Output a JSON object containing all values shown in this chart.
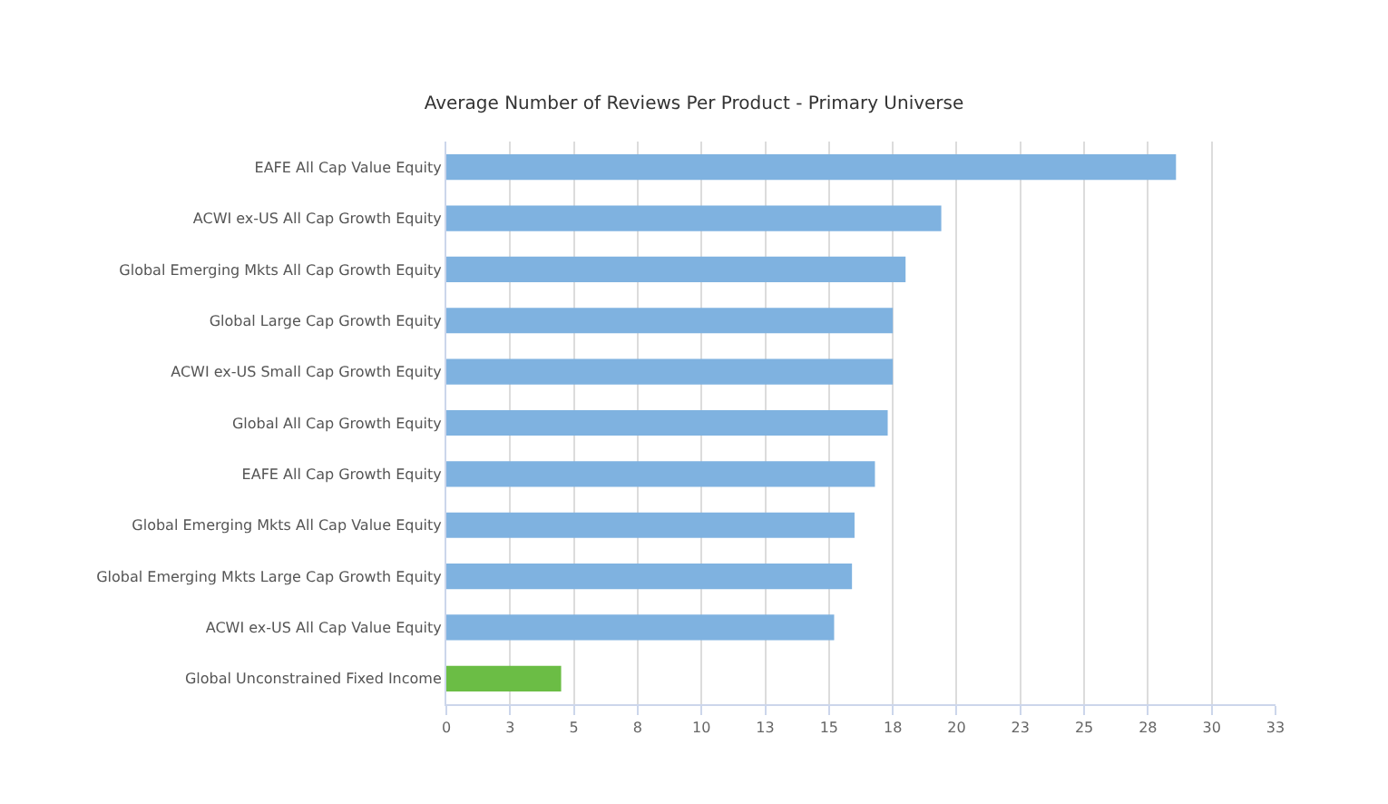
{
  "chart_data": {
    "type": "bar",
    "orientation": "horizontal",
    "title": "Average Number of Reviews Per Product - Primary Universe",
    "categories": [
      "EAFE All Cap Value Equity",
      "ACWI ex-US All Cap Growth Equity",
      "Global Emerging Mkts All Cap Growth Equity",
      "Global Large Cap Growth Equity",
      "ACWI ex-US Small Cap Growth Equity",
      "Global All Cap Growth Equity",
      "EAFE All Cap Growth Equity",
      "Global Emerging Mkts All Cap Value Equity",
      "Global Emerging Mkts Large Cap Growth Equity",
      "ACWI ex-US All Cap Value Equity",
      "Global Unconstrained Fixed Income"
    ],
    "values": [
      28.6,
      19.4,
      18.0,
      17.5,
      17.5,
      17.3,
      16.8,
      16.0,
      15.9,
      15.2,
      4.5
    ],
    "colors": [
      "#7fb2e0",
      "#7fb2e0",
      "#7fb2e0",
      "#7fb2e0",
      "#7fb2e0",
      "#7fb2e0",
      "#7fb2e0",
      "#7fb2e0",
      "#7fb2e0",
      "#7fb2e0",
      "#6bbd45"
    ],
    "xlim": [
      0,
      32.5
    ],
    "xticks": [
      0,
      {
        "value": 2.5,
        "label": "3"
      },
      5,
      {
        "value": 7.5,
        "label": "8"
      },
      10,
      {
        "value": 12.5,
        "label": "13"
      },
      15,
      {
        "value": 17.5,
        "label": "18"
      },
      20,
      {
        "value": 22.5,
        "label": "23"
      },
      25,
      {
        "value": 27.5,
        "label": "28"
      },
      30,
      {
        "value": 32.5,
        "label": "33"
      }
    ],
    "grid": "x"
  }
}
